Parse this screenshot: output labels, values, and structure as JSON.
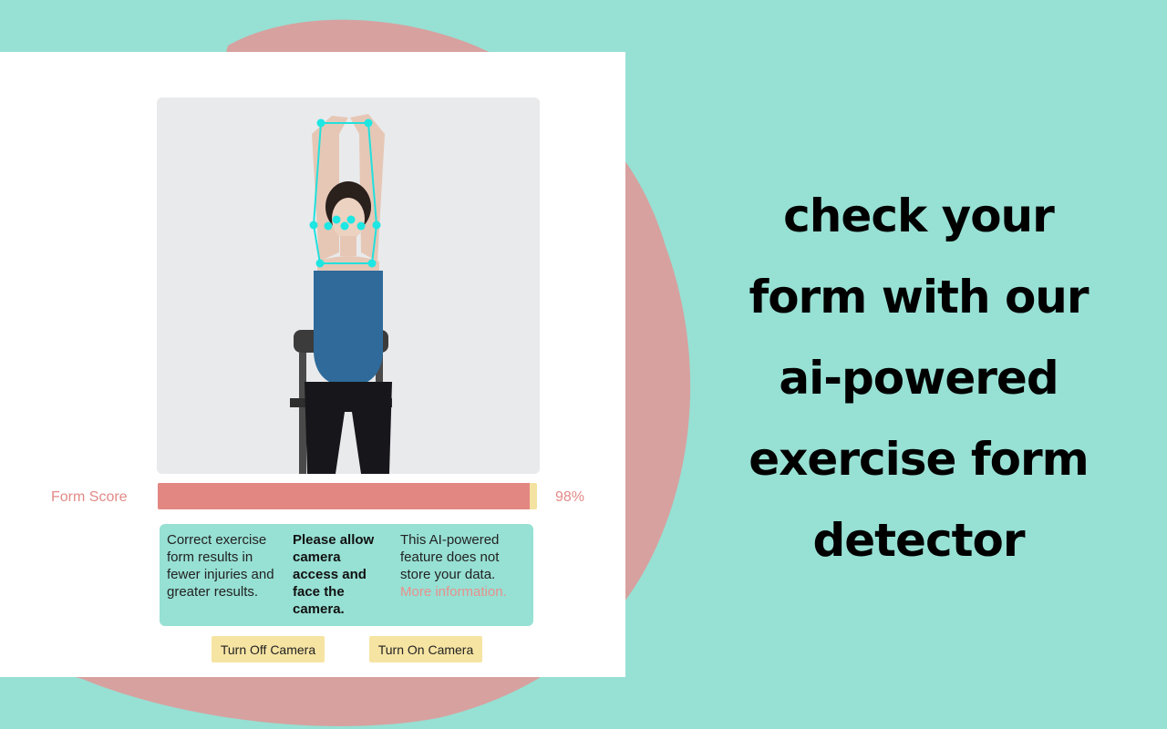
{
  "colors": {
    "background": "#97e0d4",
    "blob": "#d7a19f",
    "accent_pink": "#e28a87",
    "button_yellow": "#f6e4a3"
  },
  "detector": {
    "form_score": {
      "label": "Form Score",
      "value_text": "98%",
      "value_percent": 98
    },
    "info": {
      "col1": "Correct exercise form results in fewer injuries and greater results.",
      "col2": "Please allow camera access and face the camera.",
      "col3_text": "This AI-powered feature does not store your data.",
      "col3_link": "More information."
    },
    "buttons": {
      "turn_off": "Turn Off Camera",
      "turn_on": "Turn On Camera"
    }
  },
  "headline": {
    "lines": [
      "check your",
      "form with our",
      "ai-powered",
      "exercise form",
      "detector"
    ]
  }
}
